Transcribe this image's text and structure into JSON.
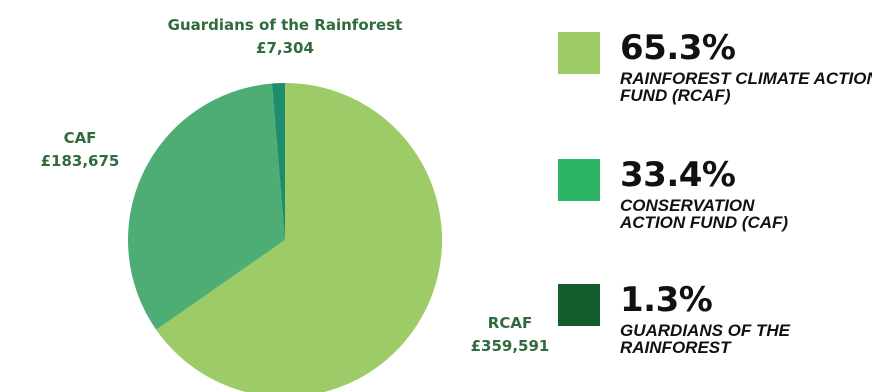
{
  "chart_data": {
    "type": "pie",
    "slices": [
      {
        "label": "RCAF",
        "value": 359591,
        "value_text": "£359,591",
        "percent": "65.3%",
        "legend": "RAINFOREST CLIMATE ACTION FUND (RCAF)",
        "color": "#9ccb68"
      },
      {
        "label": "CAF",
        "value": 183675,
        "value_text": "£183,675",
        "percent": "33.4%",
        "legend": "CONSERVATION ACTION FUND (CAF)",
        "color": "#4dad74"
      },
      {
        "label": "Guardians of the Rainforest",
        "value": 7304,
        "value_text": "£7,304",
        "percent": "1.3%",
        "legend": "GUARDIANS OF THE RAINFOREST",
        "color": "#1f8c6e"
      }
    ],
    "legend_swatch_colors": [
      "#9ccb68",
      "#2bb564",
      "#155c2e"
    ],
    "legend_position": "right",
    "start_angle_deg": 0,
    "direction": "clockwise"
  }
}
